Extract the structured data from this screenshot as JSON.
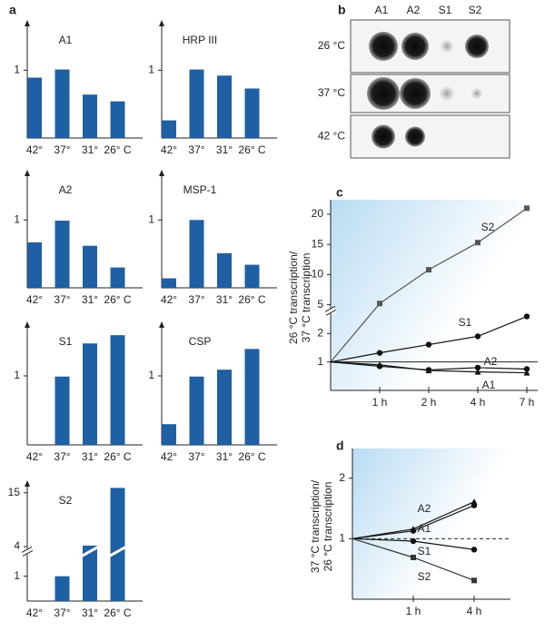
{
  "panels": [
    "a",
    "b",
    "c",
    "d"
  ],
  "chart_data": [
    {
      "type": "bar",
      "title": "A1",
      "categories": [
        "42°",
        "37°",
        "31°",
        "26° C"
      ],
      "values": [
        0.89,
        1.01,
        0.64,
        0.54
      ],
      "color": "#1f5fa3",
      "ylim": [
        0,
        1.7
      ],
      "yticks": [
        1
      ]
    },
    {
      "type": "bar",
      "title": "HRP III",
      "categories": [
        "42°",
        "37°",
        "31°",
        "26° C"
      ],
      "values": [
        0.26,
        1.01,
        0.92,
        0.73
      ],
      "color": "#1f5fa3",
      "ylim": [
        0,
        1.7
      ],
      "yticks": [
        1
      ]
    },
    {
      "type": "bar",
      "title": "A2",
      "categories": [
        "42°",
        "37°",
        "31°",
        "26° C"
      ],
      "values": [
        0.67,
        0.99,
        0.62,
        0.3
      ],
      "color": "#1f5fa3",
      "ylim": [
        0,
        1.7
      ],
      "yticks": [
        1
      ]
    },
    {
      "type": "bar",
      "title": "MSP-1",
      "categories": [
        "42°",
        "37°",
        "31°",
        "26° C"
      ],
      "values": [
        0.14,
        1.0,
        0.51,
        0.34
      ],
      "color": "#1f5fa3",
      "ylim": [
        0,
        1.7
      ],
      "yticks": [
        1
      ]
    },
    {
      "type": "bar",
      "title": "S1",
      "categories": [
        "42°",
        "37°",
        "31°",
        "26° C"
      ],
      "values": [
        null,
        0.99,
        1.47,
        1.59
      ],
      "color": "#1f5fa3",
      "ylim": [
        0,
        1.75
      ],
      "yticks": [
        1
      ]
    },
    {
      "type": "bar",
      "title": "CSP",
      "categories": [
        "42°",
        "37°",
        "31°",
        "26° C"
      ],
      "values": [
        0.3,
        0.99,
        1.09,
        1.39
      ],
      "color": "#1f5fa3",
      "ylim": [
        0,
        1.75
      ],
      "yticks": [
        1
      ]
    },
    {
      "type": "bar",
      "title": "S2",
      "categories": [
        "42°",
        "37°",
        "31°",
        "26° C"
      ],
      "values": [
        null,
        1.0,
        4.2,
        16
      ],
      "color": "#1f5fa3",
      "ylim": [
        0,
        17
      ],
      "ybreak": [
        2,
        3
      ],
      "yticks": [
        1,
        4,
        15
      ]
    },
    {
      "type": "dot-blot",
      "columns": [
        "A1",
        "A2",
        "S1",
        "S2"
      ],
      "rows": [
        "26 °C",
        "37 °C",
        "42 °C"
      ]
    },
    {
      "type": "line",
      "ylabel": [
        "26 °C transcription/",
        "37 °C transcription"
      ],
      "categories": [
        null,
        "1 h",
        "2 h",
        "4 h",
        "7 h"
      ],
      "ylim": [
        0,
        21.5
      ],
      "ybreak": [
        2.8,
        4
      ],
      "yticks": [
        1,
        2,
        5,
        10,
        15,
        20
      ],
      "hline": 1,
      "hline_style": "solid",
      "series": [
        {
          "name": "S2",
          "color": "#555555",
          "marker": "square",
          "values": [
            1,
            5.2,
            10.8,
            15.3,
            21
          ]
        },
        {
          "name": "S1",
          "color": "#111111",
          "marker": "circle",
          "values": [
            1,
            1.32,
            1.61,
            1.9,
            2.6
          ]
        },
        {
          "name": "A2",
          "color": "#111111",
          "marker": "triangle",
          "values": [
            1,
            0.9,
            0.7,
            0.65,
            0.62
          ]
        },
        {
          "name": "A1",
          "color": "#111111",
          "marker": "circle",
          "values": [
            1,
            0.85,
            0.72,
            0.8,
            0.75
          ]
        }
      ]
    },
    {
      "type": "line",
      "ylabel": [
        "37 °C transcription/",
        "26 °C transcription"
      ],
      "categories": [
        null,
        "1 h",
        "4 h"
      ],
      "ylim": [
        0,
        2.4
      ],
      "yticks": [
        1,
        2
      ],
      "hline": 1,
      "hline_style": "dashed",
      "series": [
        {
          "name": "A2",
          "color": "#111111",
          "marker": "triangle",
          "values": [
            1,
            1.16,
            1.61
          ]
        },
        {
          "name": "A1",
          "color": "#111111",
          "marker": "circle",
          "values": [
            1,
            1.13,
            1.55
          ]
        },
        {
          "name": "S1",
          "color": "#111111",
          "marker": "circle",
          "values": [
            1,
            0.96,
            0.82
          ]
        },
        {
          "name": "S2",
          "color": "#333333",
          "marker": "square",
          "values": [
            1,
            0.69,
            0.31
          ]
        }
      ]
    }
  ]
}
